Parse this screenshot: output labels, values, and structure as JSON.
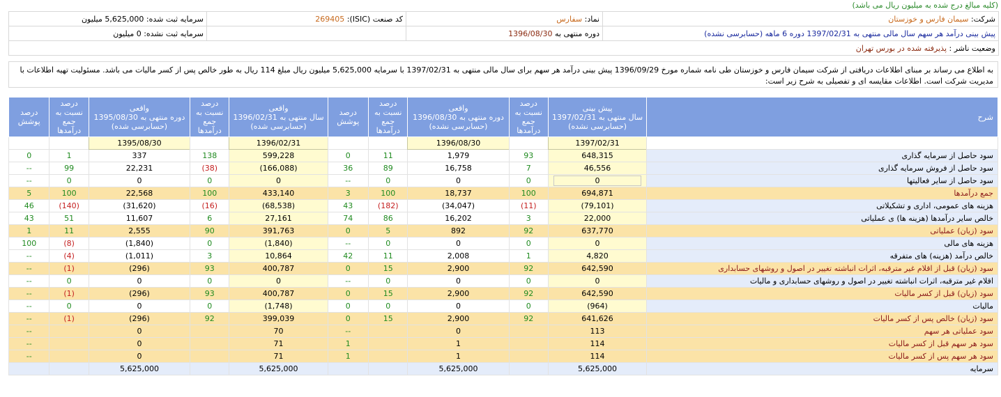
{
  "note": "(کلیه مبالغ درج شده به میلیون ریال می باشد)",
  "info": {
    "company_label": "شرکت:",
    "company_value": "سیمان فارس و خوزستان",
    "symbol_label": "نماد:",
    "symbol_value": "سفارس",
    "isic_label": "کد صنعت (ISIC):",
    "isic_value": "269405",
    "registered_capital": "سرمایه ثبت شده: 5,625,000 میلیون",
    "forecast_label": "پیش بینی درآمد هر سهم سال مالی منتهی به 1397/02/31 دوره 6 ماهه (حسابرسی نشده)",
    "period_label": "دوره منتهی به",
    "period_value": "1396/08/30",
    "unregistered_capital": "سرمایه ثبت نشده: 0 میلیون",
    "publisher_status_label": "وضعیت ناشر :",
    "publisher_status_value": "پذیرفته شده در بورس تهران"
  },
  "announcement": "به اطلاع می رساند بر مبنای اطلاعات دریافتی از شرکت سیمان فارس و خوزستان طی نامه شماره مورخ 1396/09/29 پیش بینی درآمد هر سهم برای سال مالی منتهی به 1397/02/31 با سرمایه 5,625,000 میلیون ریال مبلغ 114 ریال به طور خالص پس از کسر مالیات می باشد. مسئولیت تهیه اطلاعات با مدیریت شرکت است. اطلاعات مقایسه ای و تفصیلی به شرح زیر است:",
  "headers": {
    "desc": "شرح",
    "forecast": "پیش بینی\nسال منتهی به 1397/02/31\n(حسابرسی نشده)",
    "pct_income": "درصد\nنسبت به\nجمع\nدرآمدها",
    "actual_period_unaudited": "واقعی\nدوره منتهی به 1396/08/30\n(حسابرسی نشده)",
    "coverage": "درصد\nپوشش",
    "actual_year": "واقعی\nسال منتهی به 1396/02/31\n(حسابرسی شده)",
    "actual_period_audited": "واقعی\nدوره منتهی به 1395/08/30\n(حسابرسی شده)"
  },
  "date_row": [
    "1397/02/31",
    "1396/08/30",
    "1396/02/31",
    "1395/08/30"
  ],
  "rows": [
    {
      "label": "سود حاصل از سرمایه گذاری",
      "hl": false,
      "v": [
        "648,315",
        "93",
        "1,979",
        "11",
        "0",
        "599,228",
        "138",
        "337",
        "1",
        "0"
      ]
    },
    {
      "label": "سود حاصل از فروش سرمایه گذاری",
      "hl": false,
      "v": [
        "46,556",
        "7",
        "16,758",
        "89",
        "36",
        "(166,088)",
        "(38)",
        "22,231",
        "99",
        "--"
      ]
    },
    {
      "label": "سود حاصل از سایر فعالیتها",
      "hl": false,
      "v": [
        "0",
        "0",
        "0",
        "0",
        "--",
        "0",
        "0",
        "0",
        "0",
        "--"
      ]
    },
    {
      "label": "جمع درآمدها",
      "hl": true,
      "v": [
        "694,871",
        "100",
        "18,737",
        "100",
        "3",
        "433,140",
        "100",
        "22,568",
        "100",
        "5"
      ]
    },
    {
      "label": "هزینه های عمومی، اداری و تشکیلاتی",
      "hl": false,
      "v": [
        "(79,101)",
        "(11)",
        "(34,047)",
        "(182)",
        "43",
        "(68,538)",
        "(16)",
        "(31,620)",
        "(140)",
        "46"
      ]
    },
    {
      "label": "خالص سایر درآمدها (هزینه ها) ی عملیاتی",
      "hl": false,
      "v": [
        "22,000",
        "3",
        "16,202",
        "86",
        "74",
        "27,161",
        "6",
        "11,607",
        "51",
        "43"
      ]
    },
    {
      "label": "سود (زیان) عملیاتی",
      "hl": true,
      "v": [
        "637,770",
        "92",
        "892",
        "5",
        "0",
        "391,763",
        "90",
        "2,555",
        "11",
        "1"
      ]
    },
    {
      "label": "هزینه های مالی",
      "hl": false,
      "v": [
        "0",
        "0",
        "0",
        "0",
        "--",
        "(1,840)",
        "0",
        "(1,840)",
        "(8)",
        "100"
      ]
    },
    {
      "label": "خالص درآمد (هزینه) های متفرقه",
      "hl": false,
      "v": [
        "4,820",
        "1",
        "2,008",
        "11",
        "42",
        "10,864",
        "3",
        "(1,011)",
        "(4)",
        "--"
      ]
    },
    {
      "label": "سود (زیان) قبل از اقلام غیر مترقبه، اثرات انباشته تغییر در اصول و روشهای حسابداری",
      "hl": true,
      "v": [
        "642,590",
        "92",
        "2,900",
        "15",
        "0",
        "400,787",
        "93",
        "(296)",
        "(1)",
        "--"
      ]
    },
    {
      "label": "اقلام غیر مترقبه، اثرات انباشته تغییر در اصول و روشهای حسابداری و مالیات",
      "hl": false,
      "v": [
        "0",
        "0",
        "0",
        "0",
        "--",
        "0",
        "0",
        "0",
        "0",
        "--"
      ]
    },
    {
      "label": "سود (زیان) قبل از کسر مالیات",
      "hl": true,
      "v": [
        "642,590",
        "92",
        "2,900",
        "15",
        "0",
        "400,787",
        "93",
        "(296)",
        "(1)",
        "--"
      ]
    },
    {
      "label": "مالیات",
      "hl": false,
      "v": [
        "(964)",
        "0",
        "0",
        "0",
        "0",
        "(1,748)",
        "0",
        "0",
        "0",
        "--"
      ]
    },
    {
      "label": "سود (زیان) خالص پس از کسر مالیات",
      "hl": true,
      "v": [
        "641,626",
        "92",
        "2,900",
        "15",
        "0",
        "399,039",
        "92",
        "(296)",
        "(1)",
        "--"
      ]
    },
    {
      "label": "سود عملیاتی هر سهم",
      "hl": true,
      "v": [
        "113",
        "",
        "0",
        "",
        "--",
        "70",
        "",
        "0",
        "",
        "--"
      ]
    },
    {
      "label": "سود هر سهم قبل از کسر مالیات",
      "hl": true,
      "v": [
        "114",
        "",
        "1",
        "",
        "1",
        "71",
        "",
        "0",
        "",
        "--"
      ]
    },
    {
      "label": "سود هر سهم پس از کسر مالیات",
      "hl": true,
      "v": [
        "114",
        "",
        "1",
        "",
        "1",
        "71",
        "",
        "0",
        "",
        "--"
      ]
    },
    {
      "label": "سرمایه",
      "hl": false,
      "cap": true,
      "v": [
        "5,625,000",
        "",
        "5,625,000",
        "",
        "",
        "5,625,000",
        "",
        "5,625,000",
        "",
        ""
      ]
    }
  ],
  "colors": {
    "header_blue": "#7f9fe0",
    "highlight": "#fbe3a7",
    "label_bg": "#e4ecfa",
    "green": "#1f8a1f",
    "red": "#c41e1e"
  }
}
